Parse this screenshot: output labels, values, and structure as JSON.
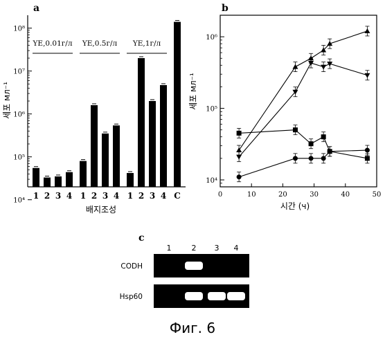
{
  "chart_data": [
    {
      "panel": "a",
      "type": "bar",
      "ylabel": "세포 мл⁻¹",
      "xlabel": "배지조성",
      "yscale": "log",
      "ylim": [
        20000,
        200000000
      ],
      "y_ticks": [
        "10⁴",
        "10⁵",
        "10⁶",
        "10⁷",
        "10⁸"
      ],
      "groups": [
        {
          "label": "YE,0.01г/л",
          "categories": [
            "1",
            "2",
            "3",
            "4"
          ],
          "values": [
            55000,
            33000,
            35000,
            44000
          ]
        },
        {
          "label": "YE,0.5г/л",
          "categories": [
            "1",
            "2",
            "3",
            "4"
          ],
          "values": [
            80000,
            1600000,
            350000,
            540000
          ]
        },
        {
          "label": "YE,1г/л",
          "categories": [
            "1",
            "2",
            "3",
            "4"
          ],
          "values": [
            42000,
            20000000,
            2000000,
            4700000
          ]
        },
        {
          "label": "",
          "categories": [
            "C"
          ],
          "values": [
            140000000
          ]
        }
      ]
    },
    {
      "panel": "b",
      "type": "line",
      "ylabel": "세포 мл⁻¹",
      "xlabel": "시간 (ч)",
      "yscale": "log",
      "xlim": [
        0,
        50
      ],
      "ylim": [
        8000,
        2000000
      ],
      "x_ticks": [
        "0",
        "10",
        "20",
        "30",
        "40",
        "50"
      ],
      "y_ticks": [
        "10⁴",
        "10⁵",
        "10⁶"
      ],
      "series": [
        {
          "marker": "triangle-up",
          "x": [
            6,
            24,
            29,
            33,
            35,
            47
          ],
          "y": [
            26000,
            380000,
            500000,
            650000,
            800000,
            1200000
          ]
        },
        {
          "marker": "triangle-down",
          "x": [
            6,
            24,
            29,
            33,
            35,
            47
          ],
          "y": [
            21000,
            170000,
            430000,
            380000,
            420000,
            290000
          ]
        },
        {
          "marker": "square",
          "x": [
            6,
            24,
            29,
            33,
            35,
            47
          ],
          "y": [
            45000,
            50000,
            32000,
            40000,
            25000,
            20000
          ]
        },
        {
          "marker": "circle",
          "x": [
            6,
            24,
            29,
            33,
            35,
            47
          ],
          "y": [
            11000,
            20000,
            20000,
            20000,
            25000,
            26000
          ]
        }
      ]
    }
  ],
  "gel": {
    "panel": "c",
    "lanes": [
      "1",
      "2",
      "3",
      "4"
    ],
    "rows": [
      {
        "label": "CODH",
        "bands": [
          false,
          true,
          false,
          false
        ]
      },
      {
        "label": "Hsp60",
        "bands": [
          false,
          true,
          true,
          true
        ]
      }
    ]
  },
  "figure_caption": "Фиг. 6"
}
